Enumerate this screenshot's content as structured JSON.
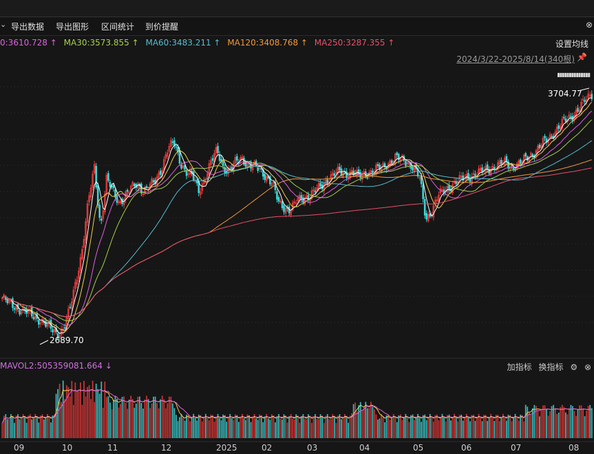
{
  "toolbar": {
    "items": [
      "导出数据",
      "导出图形",
      "区间统计",
      "到价提醒"
    ]
  },
  "icons": {
    "caret": "caret-down-icon",
    "pin": "pin-icon",
    "gear": "gear-icon",
    "close": "close-icon"
  },
  "ma_legend": [
    {
      "text": "0:3610.728 ↑",
      "color": "#e060e0"
    },
    {
      "text": "MA30:3573.855 ↑",
      "color": "#a6d04a"
    },
    {
      "text": "MA60:3483.211 ↑",
      "color": "#56bcd0"
    },
    {
      "text": "MA120:3408.768 ↑",
      "color": "#f09a3c"
    },
    {
      "text": "MA250:3287.355 ↑",
      "color": "#e8506a"
    }
  ],
  "ma_settings": "设置均线",
  "date_range": "2024/3/22-2025/8/14(340根)",
  "annotations": {
    "high": "3704.77",
    "low": "2689.70"
  },
  "vol_legend": "MAVOL2:505359081.664 ↓",
  "vol_tools": {
    "add": "加指标",
    "switch": "换指标"
  },
  "colors": {
    "up": "#e83a3a",
    "down": "#3ed6d6",
    "ma5": "#ffffff",
    "ma10": "#f2d04a",
    "ma20": "#e060e0",
    "ma30": "#a6d04a",
    "ma60": "#56bcd0",
    "ma120": "#f09a3c",
    "ma250": "#e8506a"
  },
  "chart_data": {
    "type": "candlestick",
    "x_axis_labels": [
      "09",
      "10",
      "11",
      "12",
      "2025",
      "02",
      "03",
      "04",
      "05",
      "06",
      "07",
      "08"
    ],
    "y_range": [
      2640,
      3760
    ],
    "close_series": [
      2850,
      2830,
      2815,
      2800,
      2790,
      2775,
      2760,
      2740,
      2720,
      2700,
      2720,
      2800,
      2920,
      3050,
      3250,
      3400,
      3150,
      3350,
      3300,
      3250,
      3280,
      3310,
      3330,
      3300,
      3320,
      3340,
      3400,
      3480,
      3500,
      3420,
      3380,
      3360,
      3300,
      3350,
      3420,
      3470,
      3400,
      3380,
      3420,
      3440,
      3410,
      3400,
      3390,
      3360,
      3330,
      3250,
      3230,
      3220,
      3260,
      3270,
      3280,
      3300,
      3320,
      3350,
      3370,
      3380,
      3370,
      3380,
      3360,
      3370,
      3380,
      3390,
      3400,
      3420,
      3440,
      3430,
      3420,
      3400,
      3350,
      3180,
      3220,
      3280,
      3300,
      3320,
      3340,
      3350,
      3360,
      3370,
      3380,
      3390,
      3400,
      3410,
      3420,
      3400,
      3410,
      3430,
      3450,
      3470,
      3500,
      3520,
      3550,
      3580,
      3600,
      3620,
      3650,
      3680,
      3705
    ],
    "ma_last": {
      "MA30": 3573.855,
      "MA60": 3483.211,
      "MA120": 3408.768,
      "MA250": 3287.355
    },
    "high": 3704.77,
    "low": 2689.7
  }
}
